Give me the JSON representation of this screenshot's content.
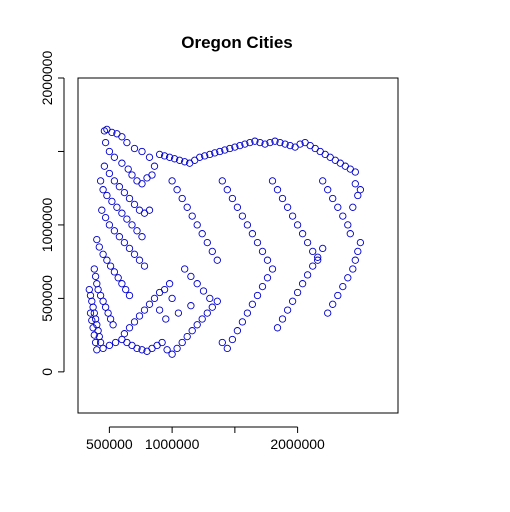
{
  "chart_data": {
    "type": "scatter",
    "title": "Oregon Cities",
    "xlabel": "",
    "ylabel": "",
    "xlim": [
      250000,
      2800000
    ],
    "ylim": [
      -280000,
      2000000
    ],
    "x_ticks": [
      500000,
      1000000,
      1500000,
      2000000
    ],
    "x_tick_labels": [
      "500000",
      "1000000",
      "",
      "2000000"
    ],
    "y_ticks": [
      0,
      500000,
      1000000,
      1500000,
      2000000
    ],
    "y_tick_labels": [
      "0",
      "500000",
      "1000000",
      "",
      "2000000"
    ],
    "marker": "open-circle",
    "color": "#0000cc",
    "series": [
      {
        "values": [
          [
            460000,
            1640000
          ],
          [
            480000,
            1650000
          ],
          [
            520000,
            1630000
          ],
          [
            560000,
            1620000
          ],
          [
            600000,
            1600000
          ],
          [
            640000,
            1560000
          ],
          [
            700000,
            1520000
          ],
          [
            760000,
            1500000
          ],
          [
            820000,
            1460000
          ],
          [
            860000,
            1400000
          ],
          [
            470000,
            1560000
          ],
          [
            500000,
            1500000
          ],
          [
            540000,
            1460000
          ],
          [
            600000,
            1420000
          ],
          [
            650000,
            1380000
          ],
          [
            680000,
            1340000
          ],
          [
            720000,
            1300000
          ],
          [
            760000,
            1280000
          ],
          [
            800000,
            1320000
          ],
          [
            840000,
            1340000
          ],
          [
            460000,
            1400000
          ],
          [
            500000,
            1350000
          ],
          [
            540000,
            1300000
          ],
          [
            580000,
            1260000
          ],
          [
            620000,
            1220000
          ],
          [
            660000,
            1180000
          ],
          [
            700000,
            1140000
          ],
          [
            740000,
            1100000
          ],
          [
            780000,
            1080000
          ],
          [
            820000,
            1100000
          ],
          [
            430000,
            1300000
          ],
          [
            450000,
            1240000
          ],
          [
            480000,
            1200000
          ],
          [
            520000,
            1160000
          ],
          [
            560000,
            1120000
          ],
          [
            600000,
            1080000
          ],
          [
            640000,
            1040000
          ],
          [
            680000,
            1000000
          ],
          [
            720000,
            960000
          ],
          [
            760000,
            920000
          ],
          [
            440000,
            1100000
          ],
          [
            470000,
            1050000
          ],
          [
            500000,
            1000000
          ],
          [
            540000,
            960000
          ],
          [
            580000,
            920000
          ],
          [
            620000,
            880000
          ],
          [
            660000,
            840000
          ],
          [
            700000,
            800000
          ],
          [
            740000,
            760000
          ],
          [
            780000,
            720000
          ],
          [
            400000,
            900000
          ],
          [
            420000,
            850000
          ],
          [
            450000,
            800000
          ],
          [
            480000,
            760000
          ],
          [
            510000,
            720000
          ],
          [
            540000,
            680000
          ],
          [
            570000,
            640000
          ],
          [
            600000,
            600000
          ],
          [
            630000,
            560000
          ],
          [
            660000,
            520000
          ],
          [
            380000,
            700000
          ],
          [
            390000,
            650000
          ],
          [
            400000,
            600000
          ],
          [
            410000,
            560000
          ],
          [
            430000,
            520000
          ],
          [
            450000,
            480000
          ],
          [
            470000,
            440000
          ],
          [
            490000,
            400000
          ],
          [
            510000,
            360000
          ],
          [
            530000,
            320000
          ],
          [
            340000,
            560000
          ],
          [
            350000,
            520000
          ],
          [
            360000,
            480000
          ],
          [
            370000,
            440000
          ],
          [
            380000,
            400000
          ],
          [
            390000,
            360000
          ],
          [
            400000,
            320000
          ],
          [
            410000,
            280000
          ],
          [
            420000,
            240000
          ],
          [
            430000,
            200000
          ],
          [
            350000,
            400000
          ],
          [
            360000,
            350000
          ],
          [
            370000,
            300000
          ],
          [
            380000,
            250000
          ],
          [
            390000,
            200000
          ],
          [
            400000,
            150000
          ],
          [
            450000,
            160000
          ],
          [
            500000,
            180000
          ],
          [
            550000,
            200000
          ],
          [
            600000,
            220000
          ],
          [
            620000,
            260000
          ],
          [
            660000,
            300000
          ],
          [
            700000,
            340000
          ],
          [
            740000,
            380000
          ],
          [
            780000,
            420000
          ],
          [
            820000,
            460000
          ],
          [
            860000,
            500000
          ],
          [
            900000,
            540000
          ],
          [
            940000,
            560000
          ],
          [
            980000,
            600000
          ],
          [
            640000,
            200000
          ],
          [
            680000,
            180000
          ],
          [
            720000,
            160000
          ],
          [
            760000,
            150000
          ],
          [
            800000,
            140000
          ],
          [
            840000,
            160000
          ],
          [
            880000,
            180000
          ],
          [
            920000,
            200000
          ],
          [
            960000,
            150000
          ],
          [
            1000000,
            120000
          ],
          [
            1040000,
            160000
          ],
          [
            1080000,
            200000
          ],
          [
            1120000,
            240000
          ],
          [
            1160000,
            280000
          ],
          [
            1200000,
            320000
          ],
          [
            1240000,
            360000
          ],
          [
            1280000,
            400000
          ],
          [
            1320000,
            440000
          ],
          [
            1360000,
            480000
          ],
          [
            1400000,
            200000
          ],
          [
            1440000,
            160000
          ],
          [
            1480000,
            220000
          ],
          [
            1520000,
            280000
          ],
          [
            1560000,
            340000
          ],
          [
            1600000,
            400000
          ],
          [
            1640000,
            460000
          ],
          [
            1680000,
            520000
          ],
          [
            1720000,
            580000
          ],
          [
            1760000,
            640000
          ],
          [
            1800000,
            700000
          ],
          [
            1840000,
            300000
          ],
          [
            1880000,
            360000
          ],
          [
            1920000,
            420000
          ],
          [
            1960000,
            480000
          ],
          [
            2000000,
            540000
          ],
          [
            2040000,
            600000
          ],
          [
            2080000,
            660000
          ],
          [
            2120000,
            720000
          ],
          [
            2160000,
            780000
          ],
          [
            2200000,
            840000
          ],
          [
            2240000,
            400000
          ],
          [
            2280000,
            460000
          ],
          [
            2320000,
            520000
          ],
          [
            2360000,
            580000
          ],
          [
            2400000,
            640000
          ],
          [
            2440000,
            700000
          ],
          [
            2460000,
            760000
          ],
          [
            2480000,
            820000
          ],
          [
            2500000,
            880000
          ],
          [
            2420000,
            940000
          ],
          [
            900000,
            1480000
          ],
          [
            940000,
            1470000
          ],
          [
            980000,
            1460000
          ],
          [
            1020000,
            1450000
          ],
          [
            1060000,
            1440000
          ],
          [
            1100000,
            1430000
          ],
          [
            1140000,
            1420000
          ],
          [
            1180000,
            1440000
          ],
          [
            1220000,
            1460000
          ],
          [
            1260000,
            1470000
          ],
          [
            1300000,
            1480000
          ],
          [
            1340000,
            1490000
          ],
          [
            1380000,
            1500000
          ],
          [
            1420000,
            1510000
          ],
          [
            1460000,
            1520000
          ],
          [
            1500000,
            1530000
          ],
          [
            1540000,
            1540000
          ],
          [
            1580000,
            1550000
          ],
          [
            1620000,
            1560000
          ],
          [
            1660000,
            1570000
          ],
          [
            1700000,
            1560000
          ],
          [
            1740000,
            1550000
          ],
          [
            1780000,
            1560000
          ],
          [
            1820000,
            1570000
          ],
          [
            1860000,
            1560000
          ],
          [
            1900000,
            1550000
          ],
          [
            1940000,
            1540000
          ],
          [
            1980000,
            1530000
          ],
          [
            2020000,
            1550000
          ],
          [
            2060000,
            1560000
          ],
          [
            2100000,
            1540000
          ],
          [
            2140000,
            1520000
          ],
          [
            2180000,
            1500000
          ],
          [
            2220000,
            1480000
          ],
          [
            2260000,
            1460000
          ],
          [
            2300000,
            1440000
          ],
          [
            2340000,
            1420000
          ],
          [
            2380000,
            1400000
          ],
          [
            2420000,
            1380000
          ],
          [
            2460000,
            1360000
          ],
          [
            1000000,
            1300000
          ],
          [
            1040000,
            1240000
          ],
          [
            1080000,
            1180000
          ],
          [
            1120000,
            1120000
          ],
          [
            1160000,
            1060000
          ],
          [
            1200000,
            1000000
          ],
          [
            1240000,
            940000
          ],
          [
            1280000,
            880000
          ],
          [
            1320000,
            820000
          ],
          [
            1360000,
            760000
          ],
          [
            1400000,
            1300000
          ],
          [
            1440000,
            1240000
          ],
          [
            1480000,
            1180000
          ],
          [
            1520000,
            1120000
          ],
          [
            1560000,
            1060000
          ],
          [
            1600000,
            1000000
          ],
          [
            1640000,
            940000
          ],
          [
            1680000,
            880000
          ],
          [
            1720000,
            820000
          ],
          [
            1760000,
            760000
          ],
          [
            1800000,
            1300000
          ],
          [
            1840000,
            1240000
          ],
          [
            1880000,
            1180000
          ],
          [
            1920000,
            1120000
          ],
          [
            1960000,
            1060000
          ],
          [
            2000000,
            1000000
          ],
          [
            2040000,
            940000
          ],
          [
            2080000,
            880000
          ],
          [
            2120000,
            820000
          ],
          [
            2160000,
            760000
          ],
          [
            2200000,
            1300000
          ],
          [
            2240000,
            1240000
          ],
          [
            2280000,
            1180000
          ],
          [
            2320000,
            1120000
          ],
          [
            2360000,
            1060000
          ],
          [
            2400000,
            1000000
          ],
          [
            2440000,
            1120000
          ],
          [
            2480000,
            1200000
          ],
          [
            2500000,
            1240000
          ],
          [
            2460000,
            1280000
          ],
          [
            1100000,
            700000
          ],
          [
            1150000,
            650000
          ],
          [
            1200000,
            600000
          ],
          [
            1250000,
            550000
          ],
          [
            1300000,
            500000
          ],
          [
            1150000,
            450000
          ],
          [
            1000000,
            500000
          ],
          [
            1050000,
            400000
          ],
          [
            900000,
            420000
          ],
          [
            950000,
            360000
          ]
        ]
      }
    ]
  }
}
